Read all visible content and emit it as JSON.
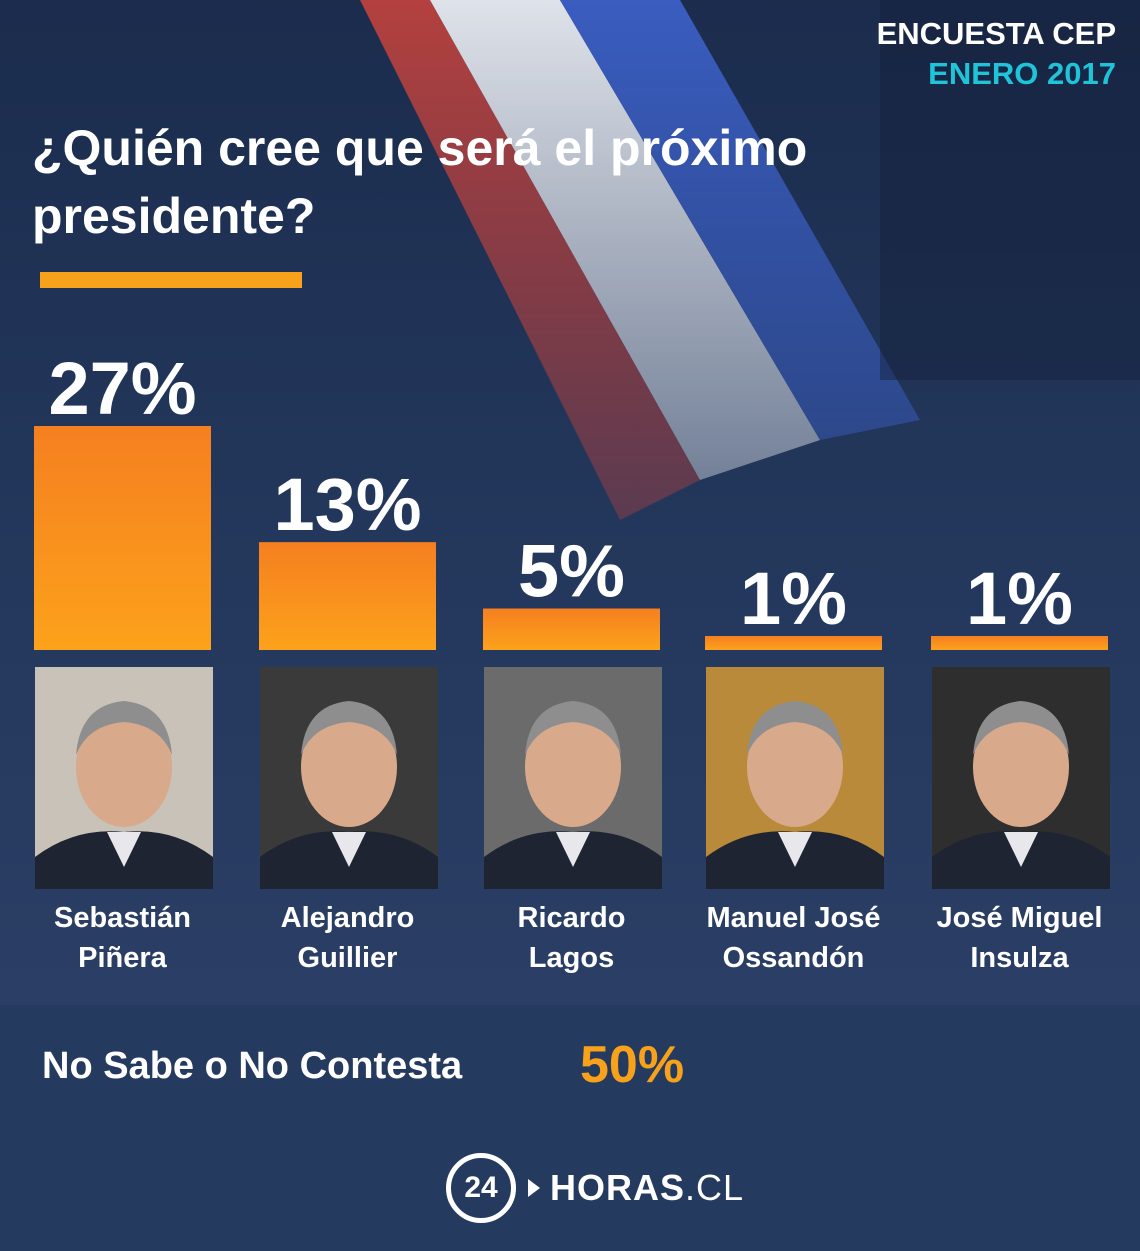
{
  "header": {
    "survey": "ENCUESTA CEP",
    "date": "ENERO 2017"
  },
  "question": "¿Quién cree  que será el próximo presidente?",
  "chart_data": {
    "type": "bar",
    "title": "¿Quién cree  que será el próximo presidente?",
    "categories": [
      "Sebastián Piñera",
      "Alejandro Guillier",
      "Ricardo Lagos",
      "Manuel José Ossandón",
      "José Miguel Insulza"
    ],
    "values": [
      27,
      13,
      5,
      1,
      1
    ],
    "value_labels": [
      "27%",
      "13%",
      "5%",
      "1%",
      "1%"
    ],
    "unit": "%",
    "ylim": [
      0,
      27
    ],
    "grid": false,
    "colors": {
      "bar_top": "#f57f20",
      "bar_bottom": "#fca21b",
      "text": "#ffffff",
      "accent": "#f7a21a"
    }
  },
  "candidates": [
    {
      "line1": "Sebastián",
      "line2": "Piñera",
      "photo": "portrait-photo"
    },
    {
      "line1": "Alejandro",
      "line2": "Guillier",
      "photo": "portrait-photo"
    },
    {
      "line1": "Ricardo",
      "line2": "Lagos",
      "photo": "portrait-photo"
    },
    {
      "line1": "Manuel José",
      "line2": "Ossandón",
      "photo": "portrait-photo"
    },
    {
      "line1": "José Miguel",
      "line2": "Insulza",
      "photo": "portrait-photo"
    }
  ],
  "dont_know": {
    "label": "No Sabe o No Contesta",
    "value": "50%"
  },
  "logo": {
    "number": "24",
    "brand": "HORAS",
    "tld": ".CL"
  }
}
